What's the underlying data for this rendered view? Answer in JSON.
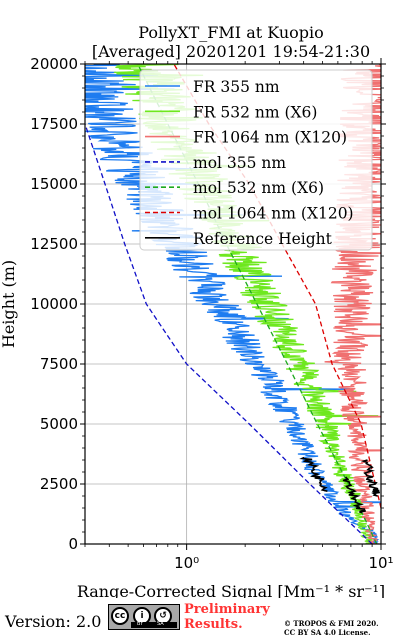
{
  "chart_data": {
    "type": "line",
    "title": "PollyXT_FMI at Kuopio",
    "subtitle": "[Averaged] 20201201 19:54-21:30",
    "xlabel": "Range-Corrected Signal [Mm⁻¹ * sr⁻¹]",
    "ylabel": "Height (m)",
    "xscale": "log",
    "xlim": [
      0.3,
      10
    ],
    "ylim": [
      0,
      20000
    ],
    "x_ticks": [
      {
        "value": 1,
        "label": "10⁰"
      },
      {
        "value": 10,
        "label": "10¹"
      }
    ],
    "y_ticks": [
      0,
      2500,
      5000,
      7500,
      10000,
      12500,
      15000,
      17500,
      20000
    ],
    "grid": true,
    "legend_position": "top-right",
    "series": [
      {
        "name": "FR 355 nm",
        "color": "#1e7cf0",
        "style": "noisy",
        "points": [
          [
            9.4,
            0
          ],
          [
            8.9,
            500
          ],
          [
            6.9,
            1000
          ],
          [
            5.6,
            2000
          ],
          [
            4.6,
            3000
          ],
          [
            4.0,
            4000
          ],
          [
            3.5,
            5000
          ],
          [
            3.0,
            6000
          ],
          [
            2.6,
            7000
          ],
          [
            2.1,
            8000
          ],
          [
            1.75,
            9000
          ],
          [
            1.45,
            10000
          ],
          [
            1.2,
            11000
          ],
          [
            1.0,
            12000
          ],
          [
            0.85,
            13000
          ],
          [
            0.7,
            14000
          ],
          [
            0.6,
            15000
          ],
          [
            0.5,
            16000
          ],
          [
            0.42,
            17000
          ],
          [
            0.36,
            18000
          ],
          [
            0.32,
            19000
          ],
          [
            0.3,
            20000
          ]
        ]
      },
      {
        "name": "FR 532 nm (X6)",
        "color": "#6ee81e",
        "style": "noisy",
        "points": [
          [
            8.8,
            0
          ],
          [
            8.2,
            500
          ],
          [
            8.0,
            1000
          ],
          [
            7.2,
            2000
          ],
          [
            6.3,
            3000
          ],
          [
            5.6,
            4000
          ],
          [
            5.2,
            5000
          ],
          [
            4.6,
            6000
          ],
          [
            4.1,
            7000
          ],
          [
            3.5,
            8000
          ],
          [
            3.0,
            9000
          ],
          [
            2.6,
            10000
          ],
          [
            2.2,
            11000
          ],
          [
            1.9,
            12000
          ],
          [
            1.65,
            13000
          ],
          [
            1.4,
            14000
          ],
          [
            1.2,
            15000
          ],
          [
            1.05,
            16000
          ],
          [
            0.9,
            17000
          ],
          [
            0.8,
            18000
          ],
          [
            0.7,
            19000
          ],
          [
            0.6,
            20000
          ]
        ]
      },
      {
        "name": "FR 1064 nm (X120)",
        "color": "#f07070",
        "style": "noisy",
        "points": [
          [
            9.3,
            0
          ],
          [
            8.7,
            1000
          ],
          [
            8.2,
            2000
          ],
          [
            7.9,
            3000
          ],
          [
            7.6,
            4000
          ],
          [
            7.3,
            5000
          ],
          [
            7.2,
            6000
          ],
          [
            7.1,
            7000
          ],
          [
            7.0,
            8000
          ],
          [
            7.0,
            9000
          ],
          [
            7.1,
            10000
          ],
          [
            7.2,
            11000
          ],
          [
            7.4,
            12000
          ],
          [
            7.6,
            13000
          ],
          [
            7.9,
            14000
          ],
          [
            8.2,
            15000
          ],
          [
            8.5,
            16000
          ],
          [
            8.8,
            17000
          ],
          [
            9.1,
            18000
          ],
          [
            9.3,
            19000
          ],
          [
            9.4,
            20000
          ]
        ]
      },
      {
        "name": "mol 355 nm",
        "color": "#1010c8",
        "style": "dashed",
        "points": [
          [
            9.0,
            0
          ],
          [
            4.3,
            2500
          ],
          [
            2.1,
            5000
          ],
          [
            1.0,
            7500
          ],
          [
            0.62,
            10000
          ],
          [
            0.48,
            12500
          ],
          [
            0.38,
            15000
          ],
          [
            0.3,
            17500
          ]
        ]
      },
      {
        "name": "mol 532 nm (X6)",
        "color": "#1eaa1e",
        "style": "dashed",
        "points": [
          [
            9.5,
            0
          ],
          [
            6.8,
            2500
          ],
          [
            4.7,
            5000
          ],
          [
            3.3,
            7500
          ],
          [
            2.3,
            10000
          ],
          [
            1.6,
            12500
          ],
          [
            1.15,
            15000
          ],
          [
            0.8,
            17500
          ],
          [
            0.56,
            20000
          ]
        ]
      },
      {
        "name": "mol 1064 nm (X120)",
        "color": "#dd0000",
        "style": "dashed",
        "points": [
          [
            10.0,
            1500
          ],
          [
            7.9,
            5000
          ],
          [
            5.6,
            7500
          ],
          [
            4.6,
            10000
          ],
          [
            3.1,
            12500
          ],
          [
            2.1,
            15000
          ],
          [
            1.3,
            17500
          ],
          [
            0.86,
            20000
          ]
        ]
      },
      {
        "name": "Reference Height",
        "color": "#000000",
        "style": "solid",
        "segments": [
          [
            [
              4.1,
              3600
            ],
            [
              4.4,
              3300
            ],
            [
              4.6,
              2900
            ],
            [
              5.0,
              2600
            ],
            [
              5.3,
              2200
            ]
          ],
          [
            [
              6.6,
              2800
            ],
            [
              7.0,
              2400
            ],
            [
              7.3,
              2000
            ],
            [
              7.7,
              1600
            ],
            [
              8.0,
              1300
            ]
          ],
          [
            [
              8.3,
              3500
            ],
            [
              8.6,
              3100
            ],
            [
              8.9,
              2700
            ],
            [
              9.2,
              2300
            ],
            [
              9.6,
              2000
            ]
          ]
        ]
      }
    ]
  },
  "footer": {
    "version": "Version: 2.0",
    "prelim_line1": "Preliminary",
    "prelim_line2": "Results.",
    "credit_line1": "© TROPOS & FMI 2020.",
    "credit_line2": "CC BY SA 4.0 License.",
    "cc_by": "BY",
    "cc_sa": "SA"
  }
}
